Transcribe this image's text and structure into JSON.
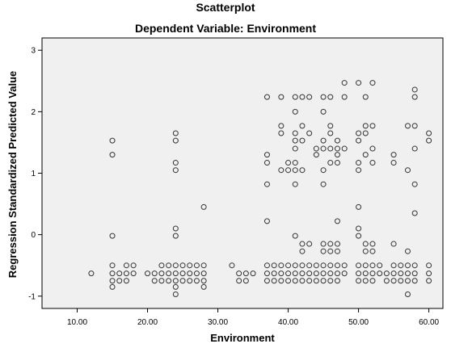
{
  "chart_data": {
    "type": "scatter",
    "title": "Scatterplot",
    "subtitle": "Dependent Variable: Environment",
    "xlabel": "Environment",
    "ylabel": "Regression Standardized Predicted Value",
    "xlim": [
      5,
      62
    ],
    "ylim": [
      -1.2,
      3.2
    ],
    "x_ticks": [
      10,
      20,
      30,
      40,
      50,
      60
    ],
    "x_tick_labels": [
      "10.00",
      "20.00",
      "30.00",
      "40.00",
      "50.00",
      "60.00"
    ],
    "y_ticks": [
      -1,
      0,
      1,
      2,
      3
    ],
    "y_tick_labels": [
      "-1",
      "0",
      "1",
      "2",
      "3"
    ],
    "grid": false,
    "plot_background": "#f0f0f0",
    "marker": "open-circle",
    "marker_color": "#333333",
    "points": [
      [
        12,
        -0.63
      ],
      [
        15,
        1.53
      ],
      [
        15,
        1.3
      ],
      [
        15,
        -0.02
      ],
      [
        15,
        -0.5
      ],
      [
        15,
        -0.63
      ],
      [
        15,
        -0.75
      ],
      [
        15,
        -0.85
      ],
      [
        16,
        -0.63
      ],
      [
        16,
        -0.75
      ],
      [
        17,
        -0.5
      ],
      [
        17,
        -0.63
      ],
      [
        17,
        -0.75
      ],
      [
        18,
        -0.5
      ],
      [
        18,
        -0.63
      ],
      [
        20,
        -0.63
      ],
      [
        21,
        -0.63
      ],
      [
        21,
        -0.75
      ],
      [
        22,
        -0.5
      ],
      [
        22,
        -0.63
      ],
      [
        22,
        -0.75
      ],
      [
        23,
        -0.5
      ],
      [
        23,
        -0.63
      ],
      [
        23,
        -0.75
      ],
      [
        24,
        1.65
      ],
      [
        24,
        1.53
      ],
      [
        24,
        1.17
      ],
      [
        24,
        1.05
      ],
      [
        24,
        0.1
      ],
      [
        24,
        -0.02
      ],
      [
        24,
        -0.5
      ],
      [
        24,
        -0.63
      ],
      [
        24,
        -0.75
      ],
      [
        24,
        -0.85
      ],
      [
        24,
        -0.97
      ],
      [
        25,
        -0.5
      ],
      [
        25,
        -0.63
      ],
      [
        25,
        -0.75
      ],
      [
        26,
        -0.5
      ],
      [
        26,
        -0.63
      ],
      [
        26,
        -0.75
      ],
      [
        27,
        -0.5
      ],
      [
        27,
        -0.63
      ],
      [
        27,
        -0.75
      ],
      [
        28,
        0.45
      ],
      [
        28,
        -0.5
      ],
      [
        28,
        -0.63
      ],
      [
        28,
        -0.75
      ],
      [
        28,
        -0.85
      ],
      [
        32,
        -0.5
      ],
      [
        33,
        -0.63
      ],
      [
        33,
        -0.75
      ],
      [
        34,
        -0.63
      ],
      [
        34,
        -0.75
      ],
      [
        35,
        -0.63
      ],
      [
        37,
        2.24
      ],
      [
        37,
        1.3
      ],
      [
        37,
        1.17
      ],
      [
        37,
        0.82
      ],
      [
        37,
        0.22
      ],
      [
        37,
        -0.5
      ],
      [
        37,
        -0.63
      ],
      [
        37,
        -0.75
      ],
      [
        38,
        -0.5
      ],
      [
        38,
        -0.63
      ],
      [
        38,
        -0.75
      ],
      [
        39,
        2.24
      ],
      [
        39,
        1.77
      ],
      [
        39,
        1.65
      ],
      [
        39,
        1.05
      ],
      [
        39,
        -0.5
      ],
      [
        39,
        -0.63
      ],
      [
        39,
        -0.75
      ],
      [
        40,
        1.17
      ],
      [
        40,
        1.05
      ],
      [
        40,
        -0.5
      ],
      [
        40,
        -0.63
      ],
      [
        40,
        -0.75
      ],
      [
        41,
        2.24
      ],
      [
        41,
        2.0
      ],
      [
        41,
        1.65
      ],
      [
        41,
        1.53
      ],
      [
        41,
        1.4
      ],
      [
        41,
        1.17
      ],
      [
        41,
        1.05
      ],
      [
        41,
        0.82
      ],
      [
        41,
        -0.02
      ],
      [
        41,
        -0.5
      ],
      [
        41,
        -0.63
      ],
      [
        41,
        -0.75
      ],
      [
        42,
        2.24
      ],
      [
        42,
        1.77
      ],
      [
        42,
        1.53
      ],
      [
        42,
        1.05
      ],
      [
        42,
        -0.15
      ],
      [
        42,
        -0.27
      ],
      [
        42,
        -0.5
      ],
      [
        42,
        -0.63
      ],
      [
        42,
        -0.75
      ],
      [
        43,
        2.24
      ],
      [
        43,
        1.65
      ],
      [
        43,
        -0.15
      ],
      [
        43,
        -0.5
      ],
      [
        43,
        -0.63
      ],
      [
        43,
        -0.75
      ],
      [
        44,
        1.4
      ],
      [
        44,
        1.3
      ],
      [
        44,
        -0.5
      ],
      [
        44,
        -0.63
      ],
      [
        44,
        -0.75
      ],
      [
        45,
        2.24
      ],
      [
        45,
        2.0
      ],
      [
        45,
        1.53
      ],
      [
        45,
        1.4
      ],
      [
        45,
        1.05
      ],
      [
        45,
        0.82
      ],
      [
        45,
        -0.15
      ],
      [
        45,
        -0.27
      ],
      [
        45,
        -0.5
      ],
      [
        45,
        -0.63
      ],
      [
        45,
        -0.75
      ],
      [
        46,
        2.24
      ],
      [
        46,
        1.77
      ],
      [
        46,
        1.65
      ],
      [
        46,
        1.4
      ],
      [
        46,
        1.17
      ],
      [
        46,
        -0.15
      ],
      [
        46,
        -0.27
      ],
      [
        46,
        -0.5
      ],
      [
        46,
        -0.63
      ],
      [
        46,
        -0.75
      ],
      [
        47,
        1.53
      ],
      [
        47,
        1.4
      ],
      [
        47,
        1.3
      ],
      [
        47,
        1.17
      ],
      [
        47,
        0.22
      ],
      [
        47,
        -0.15
      ],
      [
        47,
        -0.27
      ],
      [
        47,
        -0.5
      ],
      [
        47,
        -0.63
      ],
      [
        47,
        -0.75
      ],
      [
        48,
        2.47
      ],
      [
        48,
        2.24
      ],
      [
        48,
        1.4
      ],
      [
        48,
        -0.5
      ],
      [
        48,
        -0.63
      ],
      [
        50,
        2.47
      ],
      [
        50,
        1.65
      ],
      [
        50,
        1.53
      ],
      [
        50,
        1.17
      ],
      [
        50,
        1.05
      ],
      [
        50,
        0.45
      ],
      [
        50,
        0.1
      ],
      [
        50,
        -0.02
      ],
      [
        50,
        -0.5
      ],
      [
        50,
        -0.63
      ],
      [
        50,
        -0.75
      ],
      [
        51,
        2.24
      ],
      [
        51,
        1.77
      ],
      [
        51,
        1.65
      ],
      [
        51,
        1.3
      ],
      [
        51,
        -0.15
      ],
      [
        51,
        -0.27
      ],
      [
        51,
        -0.5
      ],
      [
        51,
        -0.63
      ],
      [
        51,
        -0.75
      ],
      [
        52,
        2.47
      ],
      [
        52,
        1.77
      ],
      [
        52,
        1.4
      ],
      [
        52,
        1.17
      ],
      [
        52,
        -0.15
      ],
      [
        52,
        -0.27
      ],
      [
        52,
        -0.5
      ],
      [
        52,
        -0.63
      ],
      [
        52,
        -0.75
      ],
      [
        53,
        -0.5
      ],
      [
        53,
        -0.63
      ],
      [
        54,
        -0.63
      ],
      [
        54,
        -0.75
      ],
      [
        55,
        1.3
      ],
      [
        55,
        1.17
      ],
      [
        55,
        -0.15
      ],
      [
        55,
        -0.5
      ],
      [
        55,
        -0.63
      ],
      [
        55,
        -0.75
      ],
      [
        56,
        -0.5
      ],
      [
        56,
        -0.63
      ],
      [
        56,
        -0.75
      ],
      [
        57,
        1.77
      ],
      [
        57,
        1.05
      ],
      [
        57,
        -0.27
      ],
      [
        57,
        -0.5
      ],
      [
        57,
        -0.63
      ],
      [
        57,
        -0.75
      ],
      [
        57,
        -0.97
      ],
      [
        58,
        2.36
      ],
      [
        58,
        2.24
      ],
      [
        58,
        1.77
      ],
      [
        58,
        1.4
      ],
      [
        58,
        0.82
      ],
      [
        58,
        0.35
      ],
      [
        58,
        -0.5
      ],
      [
        58,
        -0.63
      ],
      [
        58,
        -0.75
      ],
      [
        60,
        1.65
      ],
      [
        60,
        1.53
      ],
      [
        60,
        -0.5
      ],
      [
        60,
        -0.63
      ],
      [
        60,
        -0.75
      ]
    ]
  }
}
